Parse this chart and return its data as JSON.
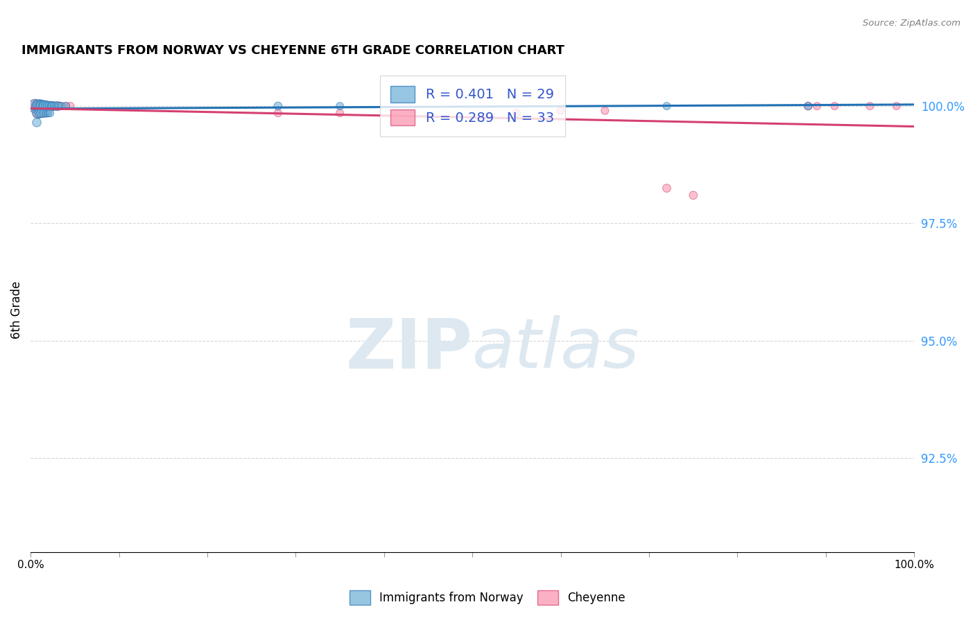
{
  "title": "IMMIGRANTS FROM NORWAY VS CHEYENNE 6TH GRADE CORRELATION CHART",
  "source": "Source: ZipAtlas.com",
  "ylabel": "6th Grade",
  "xlim": [
    0.0,
    1.0
  ],
  "ylim": [
    0.905,
    1.008
  ],
  "yticks": [
    0.925,
    0.95,
    0.975,
    1.0
  ],
  "ytick_labels": [
    "92.5%",
    "95.0%",
    "97.5%",
    "100.0%"
  ],
  "legend_label1": "R = 0.401   N = 29",
  "legend_label2": "R = 0.289   N = 33",
  "blue_color": "#6baed6",
  "pink_color": "#fc8faa",
  "trendline_blue": "#2171b5",
  "trendline_pink": "#d44070",
  "blue_scatter_x": [
    0.005,
    0.008,
    0.01,
    0.012,
    0.013,
    0.015,
    0.016,
    0.018,
    0.02,
    0.022,
    0.024,
    0.025,
    0.027,
    0.03,
    0.032,
    0.035,
    0.04,
    0.008,
    0.01,
    0.012,
    0.015,
    0.018,
    0.02,
    0.022,
    0.28,
    0.35,
    0.72,
    0.88,
    0.007
  ],
  "blue_scatter_y": [
    1.0,
    1.0,
    1.0,
    1.0,
    1.0,
    1.0,
    1.0,
    1.0,
    1.0,
    1.0,
    1.0,
    1.0,
    1.0,
    1.0,
    1.0,
    1.0,
    1.0,
    0.9985,
    0.9985,
    0.9985,
    0.9985,
    0.9985,
    0.9985,
    0.9985,
    1.0,
    1.0,
    1.0,
    1.0,
    0.9965
  ],
  "blue_scatter_size": [
    200,
    150,
    180,
    160,
    140,
    120,
    130,
    110,
    100,
    90,
    80,
    90,
    70,
    80,
    70,
    60,
    60,
    120,
    100,
    90,
    80,
    70,
    60,
    60,
    70,
    60,
    60,
    60,
    80
  ],
  "pink_scatter_x": [
    0.005,
    0.008,
    0.01,
    0.012,
    0.014,
    0.016,
    0.018,
    0.02,
    0.022,
    0.025,
    0.028,
    0.03,
    0.032,
    0.035,
    0.04,
    0.045,
    0.008,
    0.01,
    0.012,
    0.015,
    0.018,
    0.28,
    0.35,
    0.55,
    0.6,
    0.65,
    0.72,
    0.75,
    0.88,
    0.89,
    0.91,
    0.95,
    0.98
  ],
  "pink_scatter_y": [
    1.0,
    1.0,
    1.0,
    1.0,
    1.0,
    1.0,
    1.0,
    1.0,
    1.0,
    1.0,
    1.0,
    1.0,
    1.0,
    1.0,
    1.0,
    1.0,
    0.9985,
    0.9985,
    0.9985,
    0.9985,
    0.9985,
    0.9985,
    0.9985,
    0.9985,
    0.999,
    0.999,
    0.9825,
    0.981,
    1.0,
    1.0,
    1.0,
    1.0,
    1.0
  ],
  "pink_scatter_size": [
    180,
    150,
    140,
    120,
    110,
    100,
    90,
    80,
    90,
    80,
    70,
    80,
    70,
    60,
    60,
    60,
    110,
    90,
    80,
    70,
    60,
    60,
    60,
    60,
    60,
    60,
    70,
    70,
    70,
    60,
    60,
    60,
    60
  ],
  "blue_trend_x0": 0.0,
  "blue_trend_x1": 1.0,
  "blue_trend_y0": 0.9945,
  "blue_trend_y1": 1.001,
  "pink_trend_x0": 0.0,
  "pink_trend_x1": 1.0,
  "pink_trend_y0": 0.994,
  "pink_trend_y1": 1.001,
  "watermark_zip": "ZIP",
  "watermark_atlas": "atlas",
  "watermark_color": "#dde8f0",
  "background_color": "#ffffff",
  "grid_color": "#cccccc"
}
